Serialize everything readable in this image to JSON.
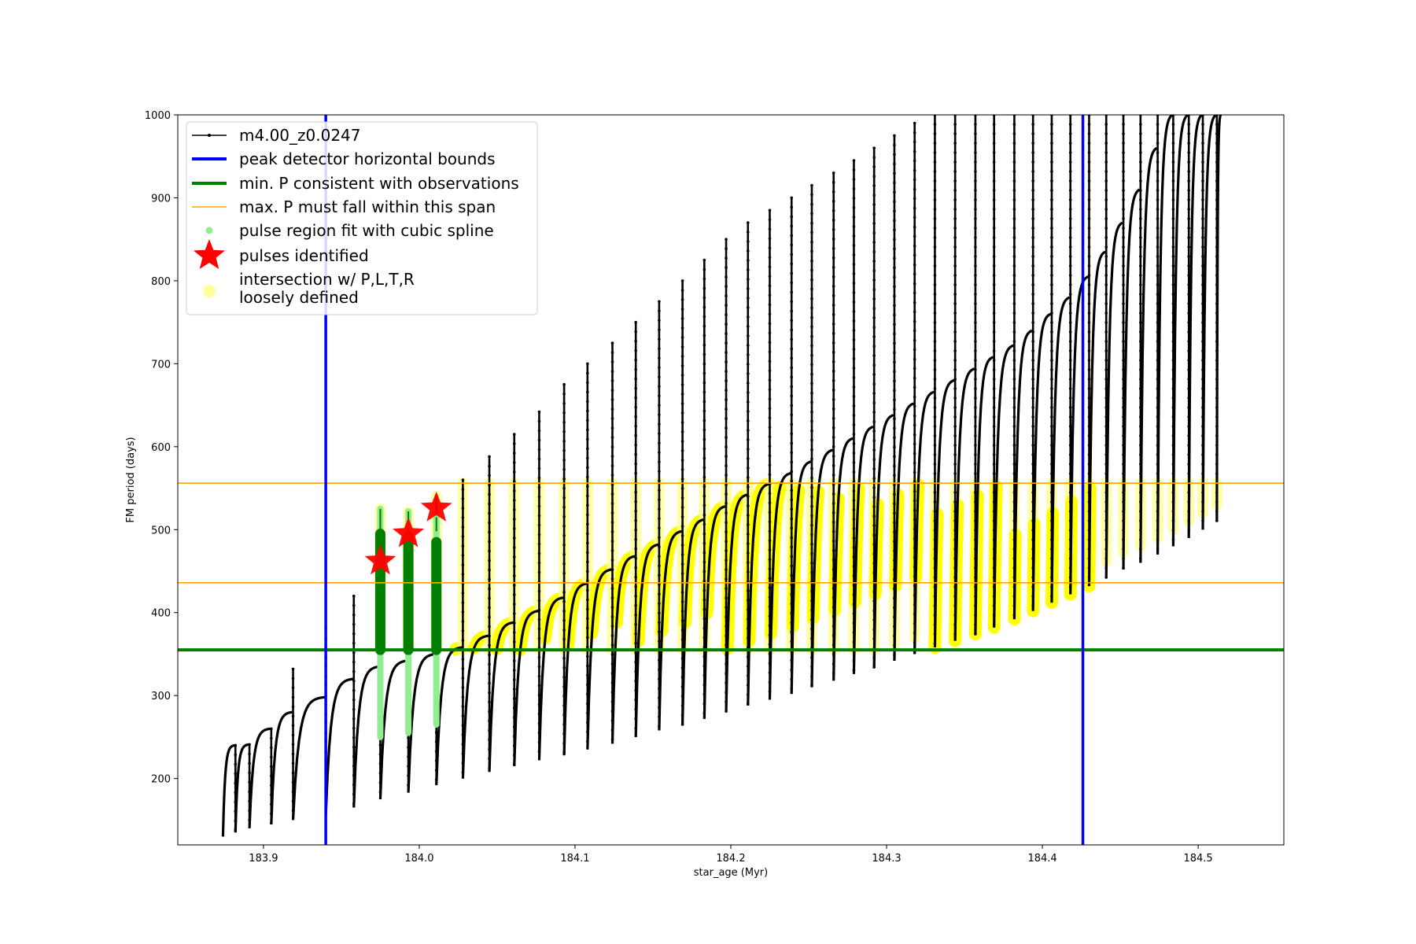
{
  "chart_data": {
    "type": "line",
    "title": "",
    "xlabel": "star_age (Myr)",
    "ylabel": "FM period (days)",
    "xlim": [
      183.845,
      184.555
    ],
    "ylim": [
      120,
      1000
    ],
    "xticks": [
      183.9,
      184.0,
      184.1,
      184.2,
      184.3,
      184.4,
      184.5
    ],
    "xtick_labels": [
      "183.9",
      "184.0",
      "184.1",
      "184.2",
      "184.3",
      "184.4",
      "184.5"
    ],
    "yticks": [
      200,
      300,
      400,
      500,
      600,
      700,
      800,
      900,
      1000
    ],
    "ytick_labels": [
      "200",
      "300",
      "400",
      "500",
      "600",
      "700",
      "800",
      "900",
      "1000"
    ],
    "grid": false,
    "legend_position": "top-left",
    "colors": {
      "track": "#000000",
      "bounds": "#0000ff",
      "min_period": "#008000",
      "max_span": "#ffa500",
      "spline": "#90ee90",
      "pulse_star": "#ff0000",
      "intersection": "#ffff00"
    },
    "series": [
      {
        "name": "m4.00_z0.0247",
        "kind": "track",
        "pulses": [
          {
            "start": 183.874,
            "peak": 240,
            "end_max": 175,
            "end_min": 130
          },
          {
            "start": 183.882,
            "peak": 241,
            "end_max": 175,
            "end_min": 135
          },
          {
            "start": 183.891,
            "peak": 260,
            "end_max": 200,
            "end_min": 140
          },
          {
            "start": 183.905,
            "peak": 280,
            "end_max": 230,
            "end_min": 145
          },
          {
            "start": 183.919,
            "peak": 298,
            "end_max": 332,
            "end_min": 150
          },
          {
            "start": 183.94,
            "peak": 320,
            "end_max": 380,
            "end_min": 155
          },
          {
            "start": 183.958,
            "peak": 335,
            "end_max": 420,
            "end_min": 165
          },
          {
            "start": 183.975,
            "peak": 342,
            "end_max": 525,
            "end_min": 175
          },
          {
            "start": 183.993,
            "peak": 350,
            "end_max": 522,
            "end_min": 183
          },
          {
            "start": 184.011,
            "peak": 358,
            "end_max": 540,
            "end_min": 192
          },
          {
            "start": 184.028,
            "peak": 372,
            "end_max": 560,
            "end_min": 200
          },
          {
            "start": 184.045,
            "peak": 388,
            "end_max": 588,
            "end_min": 208
          },
          {
            "start": 184.061,
            "peak": 402,
            "end_max": 615,
            "end_min": 215
          },
          {
            "start": 184.077,
            "peak": 418,
            "end_max": 642,
            "end_min": 222
          },
          {
            "start": 184.093,
            "peak": 435,
            "end_max": 675,
            "end_min": 228
          },
          {
            "start": 184.108,
            "peak": 452,
            "end_max": 700,
            "end_min": 235
          },
          {
            "start": 184.124,
            "peak": 468,
            "end_max": 725,
            "end_min": 242
          },
          {
            "start": 184.139,
            "peak": 482,
            "end_max": 750,
            "end_min": 250
          },
          {
            "start": 184.154,
            "peak": 498,
            "end_max": 775,
            "end_min": 258
          },
          {
            "start": 184.169,
            "peak": 512,
            "end_max": 800,
            "end_min": 265
          },
          {
            "start": 184.183,
            "peak": 528,
            "end_max": 825,
            "end_min": 272
          },
          {
            "start": 184.197,
            "peak": 542,
            "end_max": 850,
            "end_min": 280
          },
          {
            "start": 184.211,
            "peak": 555,
            "end_max": 870,
            "end_min": 288
          },
          {
            "start": 184.225,
            "peak": 568,
            "end_max": 885,
            "end_min": 295
          },
          {
            "start": 184.239,
            "peak": 582,
            "end_max": 900,
            "end_min": 302
          },
          {
            "start": 184.252,
            "peak": 596,
            "end_max": 915,
            "end_min": 310
          },
          {
            "start": 184.266,
            "peak": 610,
            "end_max": 930,
            "end_min": 318
          },
          {
            "start": 184.279,
            "peak": 624,
            "end_max": 945,
            "end_min": 326
          },
          {
            "start": 184.292,
            "peak": 638,
            "end_max": 960,
            "end_min": 334
          },
          {
            "start": 184.305,
            "peak": 652,
            "end_max": 975,
            "end_min": 342
          },
          {
            "start": 184.318,
            "peak": 666,
            "end_max": 990,
            "end_min": 350
          },
          {
            "start": 184.331,
            "peak": 680,
            "end_max": 1000,
            "end_min": 358
          },
          {
            "start": 184.344,
            "peak": 694,
            "end_max": 1000,
            "end_min": 366
          },
          {
            "start": 184.357,
            "peak": 708,
            "end_max": 1000,
            "end_min": 374
          },
          {
            "start": 184.369,
            "peak": 722,
            "end_max": 1000,
            "end_min": 382
          },
          {
            "start": 184.382,
            "peak": 740,
            "end_max": 1000,
            "end_min": 392
          },
          {
            "start": 184.394,
            "peak": 760,
            "end_max": 1000,
            "end_min": 402
          },
          {
            "start": 184.406,
            "peak": 780,
            "end_max": 1000,
            "end_min": 412
          },
          {
            "start": 184.418,
            "peak": 805,
            "end_max": 1000,
            "end_min": 422
          },
          {
            "start": 184.43,
            "peak": 835,
            "end_max": 1000,
            "end_min": 432
          },
          {
            "start": 184.441,
            "peak": 870,
            "end_max": 1000,
            "end_min": 442
          },
          {
            "start": 184.452,
            "peak": 910,
            "end_max": 1000,
            "end_min": 452
          },
          {
            "start": 184.463,
            "peak": 960,
            "end_max": 1000,
            "end_min": 460
          },
          {
            "start": 184.474,
            "peak": 1000,
            "end_max": 1000,
            "end_min": 470
          },
          {
            "start": 184.484,
            "peak": 1000,
            "end_max": 1000,
            "end_min": 480
          },
          {
            "start": 184.494,
            "peak": 1000,
            "end_max": 1000,
            "end_min": 490
          },
          {
            "start": 184.503,
            "peak": 1000,
            "end_max": 1000,
            "end_min": 500
          },
          {
            "start": 184.512,
            "peak": 1000,
            "end_max": 1000,
            "end_min": 510
          }
        ],
        "track_end": 184.515
      },
      {
        "name": "peak detector horizontal bounds",
        "kind": "vline",
        "x": [
          183.94,
          184.426
        ]
      },
      {
        "name": "min. P consistent with observations",
        "kind": "hline",
        "y": 355
      },
      {
        "name": "max. P must fall within this span",
        "kind": "hline",
        "y": [
          436,
          556
        ]
      },
      {
        "name": "pulse region fit with cubic spline",
        "kind": "spline",
        "segments": [
          {
            "x": 183.975,
            "y_low": 250,
            "y_high": 525
          },
          {
            "x": 183.993,
            "y_low": 255,
            "y_high": 522
          },
          {
            "x": 184.011,
            "y_low": 265,
            "y_high": 515
          }
        ]
      },
      {
        "name": "pulses identified",
        "kind": "star",
        "x": [
          183.975,
          183.993,
          184.011
        ],
        "y": [
          462,
          495,
          526
        ]
      },
      {
        "name": "intersection w/ P,L,T,R\nloosely defined",
        "kind": "intersection",
        "y_min": 355,
        "y_max": 556
      }
    ],
    "legend": [
      {
        "label": "m4.00_z0.0247",
        "marker": "line-dot",
        "color": "#000000"
      },
      {
        "label": "peak detector horizontal bounds",
        "marker": "line-thick",
        "color": "#0000ff"
      },
      {
        "label": "min. P consistent with observations",
        "marker": "line-thick",
        "color": "#008000"
      },
      {
        "label": "max. P must fall within this span",
        "marker": "line-thin",
        "color": "#ffa500"
      },
      {
        "label": "pulse region fit with cubic spline",
        "marker": "dot",
        "color": "#90ee90"
      },
      {
        "label": "pulses identified",
        "marker": "star",
        "color": "#ff0000"
      },
      {
        "label": "intersection w/ P,L,T,R",
        "label2": "loosely defined",
        "marker": "big-dot",
        "color": "#ffff99"
      }
    ]
  }
}
